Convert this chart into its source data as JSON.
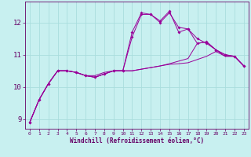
{
  "xlabel": "Windchill (Refroidissement éolien,°C)",
  "bg_color": "#c8f0f0",
  "line_color": "#990099",
  "grid_color": "#aadddd",
  "axis_color": "#660066",
  "text_color": "#660066",
  "xlim": [
    -0.5,
    23.5
  ],
  "ylim": [
    8.7,
    12.65
  ],
  "xticks": [
    0,
    1,
    2,
    3,
    4,
    5,
    6,
    7,
    8,
    9,
    10,
    11,
    12,
    13,
    14,
    15,
    16,
    17,
    18,
    19,
    20,
    21,
    22,
    23
  ],
  "yticks": [
    9,
    10,
    11,
    12
  ],
  "x": [
    0,
    1,
    2,
    3,
    4,
    5,
    6,
    7,
    8,
    9,
    10,
    11,
    12,
    13,
    14,
    15,
    16,
    17,
    18,
    19,
    20,
    21,
    22,
    23
  ],
  "curve1_y": [
    8.9,
    9.6,
    10.1,
    10.5,
    10.5,
    10.45,
    10.35,
    10.3,
    10.4,
    10.5,
    10.5,
    11.55,
    12.25,
    12.25,
    12.0,
    12.3,
    11.85,
    11.8,
    11.5,
    11.35,
    11.15,
    11.0,
    10.95,
    10.65
  ],
  "curve2_y": [
    8.9,
    9.6,
    10.1,
    10.5,
    10.5,
    10.45,
    10.35,
    10.3,
    10.4,
    10.5,
    10.5,
    11.7,
    12.3,
    12.25,
    12.05,
    12.35,
    11.7,
    11.8,
    11.35,
    11.4,
    11.15,
    11.0,
    10.95,
    10.65
  ],
  "curve3_y": [
    8.9,
    9.6,
    10.1,
    10.5,
    10.5,
    10.45,
    10.35,
    10.3,
    10.4,
    10.5,
    10.5,
    10.5,
    10.55,
    10.6,
    10.65,
    10.7,
    10.72,
    10.75,
    10.85,
    10.95,
    11.1,
    10.95,
    10.95,
    10.65
  ],
  "curve4_y": [
    8.9,
    9.6,
    10.1,
    10.5,
    10.5,
    10.45,
    10.35,
    10.35,
    10.45,
    10.5,
    10.5,
    10.5,
    10.55,
    10.6,
    10.65,
    10.72,
    10.8,
    10.88,
    11.35,
    11.4,
    11.15,
    10.95,
    10.95,
    10.65
  ]
}
